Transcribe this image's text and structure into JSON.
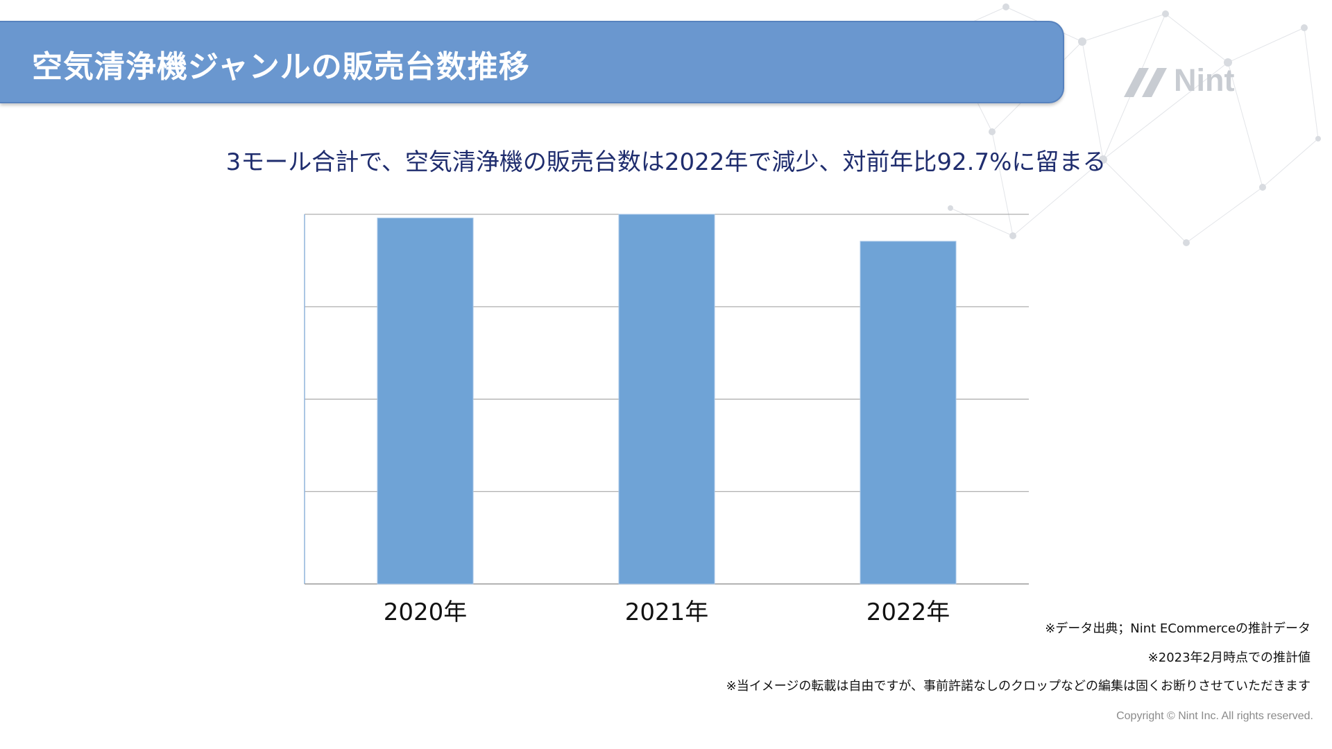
{
  "header": {
    "title": "空気清浄機ジャンルの販売台数推移"
  },
  "logo": {
    "text": "Nint"
  },
  "subtitle": "3モール合計で、空気清浄機の販売台数は2022年で減少、対前年比92.7%に留まる",
  "chart_data": {
    "type": "bar",
    "categories": [
      "2020年",
      "2021年",
      "2022年"
    ],
    "values": [
      99,
      100,
      92.7
    ],
    "ylim": [
      0,
      100
    ],
    "grid": true,
    "legend": "none",
    "bar_color": "#6fa3d6"
  },
  "footnotes": [
    "※データ出典；Nint ECommerceの推計データ",
    "※2023年2月時点での推計値",
    "※当イメージの転載は自由ですが、事前許諾なしのクロップなどの編集は固くお断りさせていただきます"
  ],
  "copyright": "Copyright © Nint Inc. All rights reserved."
}
